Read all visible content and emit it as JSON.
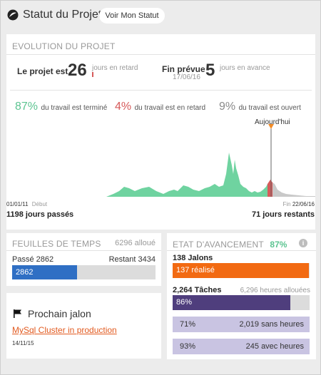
{
  "header": {
    "title": "Statut du Projet",
    "status_button": "Voir Mon Statut"
  },
  "evolution": {
    "title": "EVOLUTION DU PROJET",
    "late_label": "Le projet est",
    "late_value": "26",
    "late_unit": "jours en retard",
    "forecast_label": "Fin prévue",
    "forecast_date": "17/06/16",
    "forecast_value": "5",
    "forecast_unit": "jours en avance",
    "stats": [
      {
        "pct": "87%",
        "label": "du travail est terminé"
      },
      {
        "pct": "4%",
        "label": "du travail est en retard"
      },
      {
        "pct": "9%",
        "label": "du travail est ouvert"
      }
    ],
    "today_label": "Aujourd'hui",
    "start_date": "01/01/11",
    "start_label": "Début",
    "end_label": "Fin",
    "end_date": "22/06/16",
    "days_passed": "1198 jours passés",
    "days_left": "71 jours restants",
    "colors": {
      "done": "#6fd3a0",
      "late": "#d65a5a",
      "open": "#c9c9c9",
      "today_marker": "#f28c28"
    }
  },
  "timesheets": {
    "title": "FEUILLES DE TEMPS",
    "allocated": "6296 alloué",
    "passed_label": "Passé 2862",
    "remaining_label": "Restant 3434",
    "bar_value": "2862",
    "bar_fraction": 0.4546,
    "bar_color": "#2f6fc4"
  },
  "milestone": {
    "title": "Prochain jalon",
    "link": "MySql Cluster in production",
    "date": "14/11/15"
  },
  "progress": {
    "title": "ETAT D'AVANCEMENT",
    "pct": "87%",
    "info_icon": "i",
    "jalons_label": "138 Jalons",
    "jalons_bar": "137 réalisé",
    "jalons_fraction": 0.993,
    "jalons_color": "#f26a12",
    "tasks_label": "2,264 Tâches",
    "tasks_hours": "6,296 heures allouées",
    "tasks_bar": "86%",
    "tasks_fraction": 0.86,
    "tasks_color": "#4f3e7d",
    "row1_pct": "71%",
    "row1_text": "2,019 sans heures",
    "row2_pct": "93%",
    "row2_text": "245 avec heures",
    "light_color": "#c9c4e2"
  }
}
